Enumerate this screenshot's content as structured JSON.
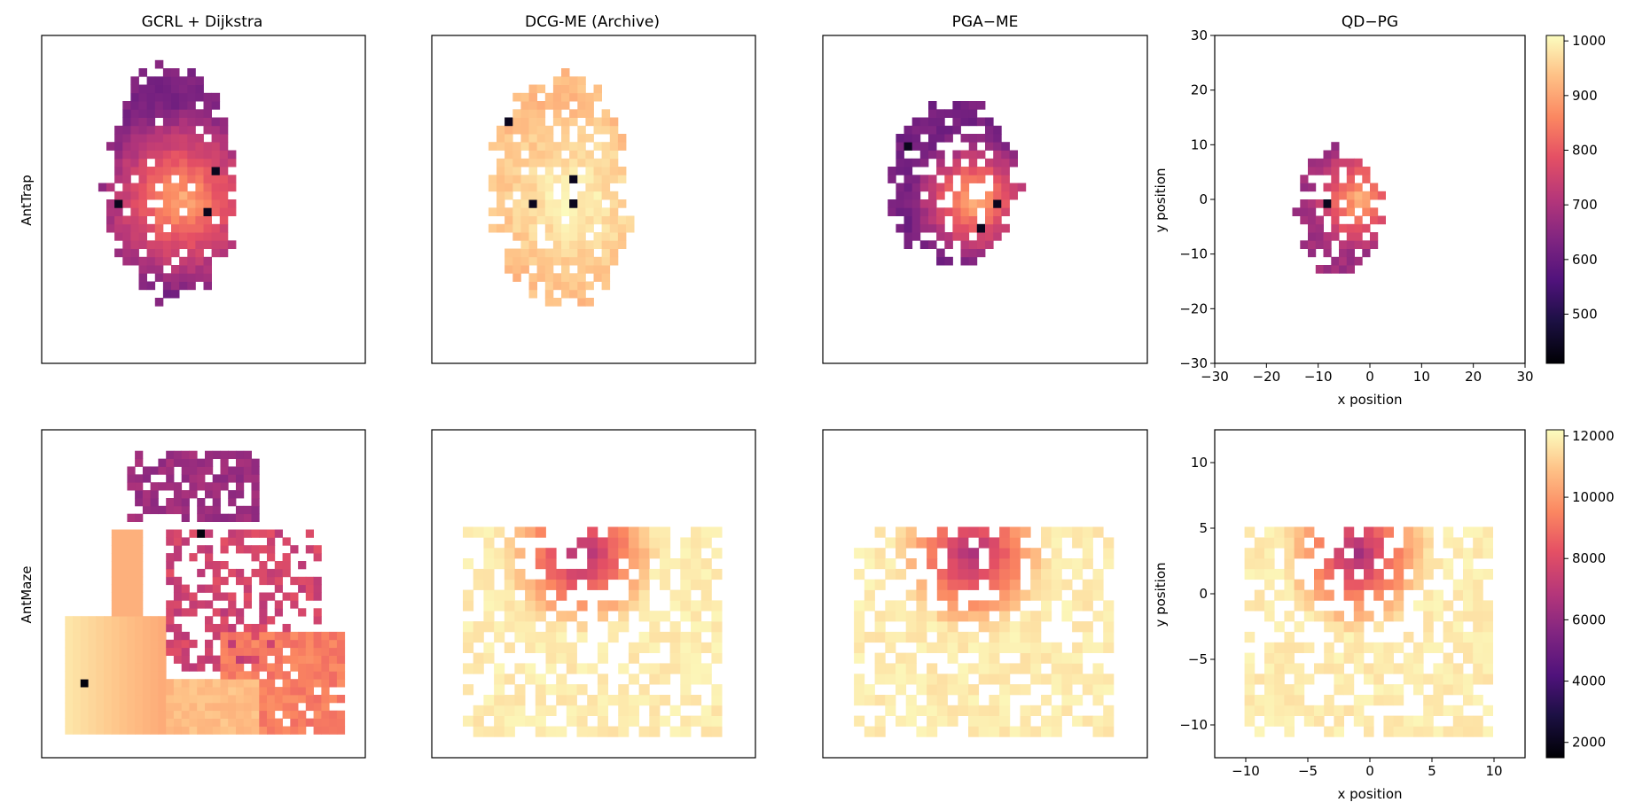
{
  "columns": [
    "GCRL + Dijkstra",
    "DCG-ME (Archive)",
    "PGA−ME",
    "QD−PG"
  ],
  "rows": [
    "AntTrap",
    "AntMaze"
  ],
  "colormap": "magma",
  "chart_data": [
    {
      "type": "heatmap",
      "environment": "AntTrap",
      "xlabel": "x position",
      "ylabel": "y position",
      "xlim": [
        -30,
        30
      ],
      "ylim": [
        -30,
        30
      ],
      "xticks": [
        "−30",
        "−20",
        "−10",
        "0",
        "10",
        "20",
        "30"
      ],
      "yticks": [
        "−30",
        "−20",
        "−10",
        "0",
        "10",
        "20",
        "30"
      ],
      "colorbar": {
        "min": 410,
        "max": 1010,
        "ticks": [
          "500",
          "600",
          "700",
          "800",
          "900",
          "1000"
        ]
      },
      "panels": [
        {
          "method": "GCRL + Dijkstra",
          "bin_size": 1.5,
          "shape": "ellipse",
          "center": [
            -6,
            3
          ],
          "radii": [
            12,
            21
          ],
          "notch": [
            10,
            3,
            3
          ],
          "fill": 0.92,
          "peak": [
            -4,
            0
          ],
          "high": 910,
          "low": 630,
          "seed": 11
        },
        {
          "method": "DCG-ME (Archive)",
          "bin_size": 1.5,
          "shape": "ellipse",
          "center": [
            -6,
            2
          ],
          "radii": [
            13,
            21
          ],
          "notch": [
            10,
            2,
            3
          ],
          "fill": 0.82,
          "peak": [
            -4,
            0
          ],
          "high": 1000,
          "low": 930,
          "seed": 23
        },
        {
          "method": "PGA−ME",
          "bin_size": 1.5,
          "shape": "ellipse",
          "center": [
            -6,
            3
          ],
          "radii": [
            12,
            15
          ],
          "notch": null,
          "fill": 0.75,
          "peak": [
            -2,
            0
          ],
          "high": 930,
          "low": 620,
          "seed": 37
        },
        {
          "method": "QD−PG",
          "bin_size": 1.5,
          "shape": "ellipse",
          "center": [
            -6,
            -2
          ],
          "radii": [
            8,
            12
          ],
          "notch": null,
          "fill": 0.8,
          "peak": [
            -2,
            0
          ],
          "high": 920,
          "low": 680,
          "seed": 41
        }
      ]
    },
    {
      "type": "heatmap",
      "environment": "AntMaze",
      "xlabel": "x position",
      "ylabel": "y position",
      "xlim": [
        -12.5,
        12.5
      ],
      "ylim": [
        -12.5,
        12.5
      ],
      "xticks": [
        "−10",
        "−5",
        "0",
        "5",
        "10"
      ],
      "yticks": [
        "−10",
        "−5",
        "0",
        "5",
        "10"
      ],
      "colorbar": {
        "min": 1500,
        "max": 12200,
        "ticks": [
          "2000",
          "4000",
          "6000",
          "8000",
          "10000",
          "12000"
        ]
      },
      "panels": [
        {
          "method": "GCRL + Dijkstra",
          "bin_size": 0.6,
          "shape": "maze",
          "seed": 53
        },
        {
          "method": "DCG-ME (Archive)",
          "bin_size": 0.8,
          "shape": "blob",
          "seed": 67
        },
        {
          "method": "PGA−ME",
          "bin_size": 0.8,
          "shape": "blob",
          "seed": 71
        },
        {
          "method": "QD−PG",
          "bin_size": 0.8,
          "shape": "blob",
          "seed": 83
        }
      ]
    }
  ]
}
